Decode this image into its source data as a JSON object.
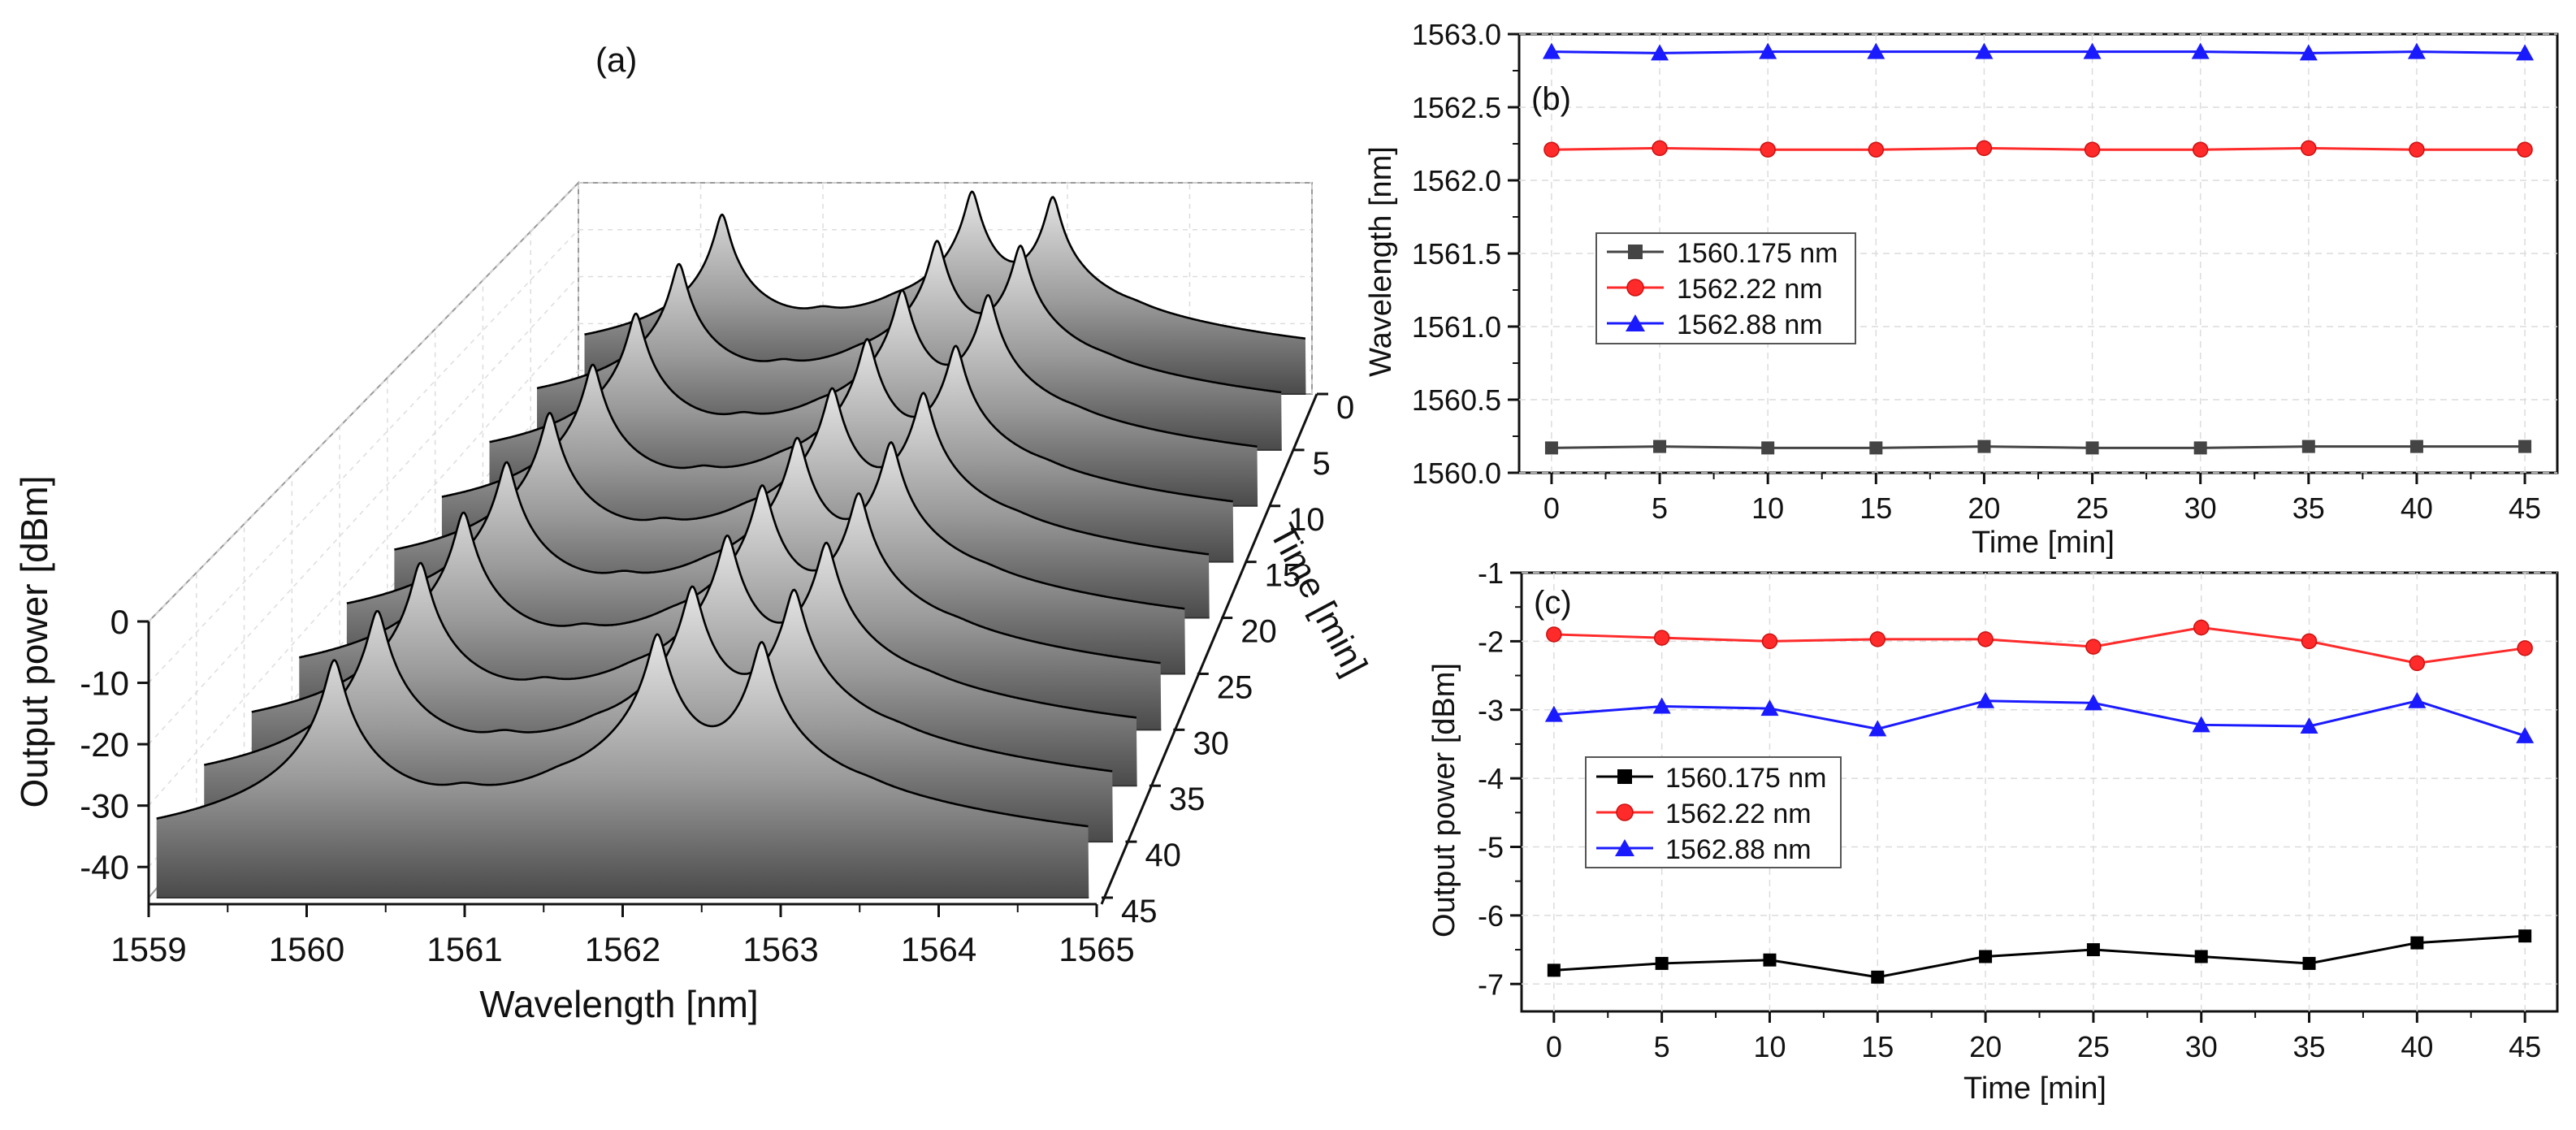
{
  "chart_data": [
    {
      "panel": "(a)",
      "type": "area",
      "style": "3d-waterfall",
      "title": "",
      "xlabel": "Wavelength [nm]",
      "ylabel": "Output power [dBm]",
      "zlabel": "Time [min]",
      "xlim": [
        1559,
        1565
      ],
      "ylim": [
        -45,
        0
      ],
      "x_ticks": [
        "1559",
        "1560",
        "1561",
        "1562",
        "1563",
        "1564",
        "1565"
      ],
      "y_ticks": [
        "0",
        "-10",
        "-20",
        "-30",
        "-40"
      ],
      "z_ticks": [
        "0",
        "5",
        "10",
        "15",
        "20",
        "25",
        "30",
        "35",
        "40",
        "45"
      ],
      "baseline_dbm": -45,
      "noise_floor_dbm": -43,
      "peaks": [
        {
          "wavelength": 1560.175,
          "power": [
            -6.8,
            -6.7,
            -6.65,
            -6.9,
            -6.6,
            -6.5,
            -6.6,
            -6.7,
            -6.4,
            -6.3
          ]
        },
        {
          "wavelength": 1562.22,
          "power": [
            -1.9,
            -1.95,
            -2.0,
            -1.97,
            -1.97,
            -2.08,
            -1.8,
            -2.0,
            -2.32,
            -2.1
          ]
        },
        {
          "wavelength": 1562.88,
          "power": [
            -3.07,
            -2.95,
            -2.98,
            -3.28,
            -2.87,
            -2.9,
            -3.22,
            -3.24,
            -2.87,
            -3.38
          ]
        }
      ],
      "side_modes": [
        {
          "wavelength": 1561.0,
          "power": -33
        },
        {
          "wavelength": 1561.6,
          "power": -34
        },
        {
          "wavelength": 1563.55,
          "power": -37
        }
      ]
    },
    {
      "panel": "(b)",
      "type": "line",
      "title": "",
      "xlabel": "Time [min]",
      "ylabel": "Wavelength [nm]",
      "xlim": [
        -1.5,
        46.5
      ],
      "ylim": [
        1560.0,
        1563.0
      ],
      "x_ticks": [
        "0",
        "5",
        "10",
        "15",
        "20",
        "25",
        "30",
        "35",
        "40",
        "45"
      ],
      "y_ticks": [
        "1560.0",
        "1560.5",
        "1561.0",
        "1561.5",
        "1562.0",
        "1562.5",
        "1563.0"
      ],
      "x": [
        0,
        5,
        10,
        15,
        20,
        25,
        30,
        35,
        40,
        45
      ],
      "series": [
        {
          "name": "1560.175 nm",
          "color": "#444444",
          "marker": "square",
          "values": [
            1560.17,
            1560.18,
            1560.17,
            1560.17,
            1560.18,
            1560.17,
            1560.17,
            1560.18,
            1560.18,
            1560.18
          ]
        },
        {
          "name": "1562.22 nm",
          "color": "#ff2a2a",
          "marker": "circle",
          "values": [
            1562.21,
            1562.22,
            1562.21,
            1562.21,
            1562.22,
            1562.21,
            1562.21,
            1562.22,
            1562.21,
            1562.21
          ]
        },
        {
          "name": "1562.88 nm",
          "color": "#1a1aff",
          "marker": "triangle",
          "values": [
            1562.88,
            1562.87,
            1562.88,
            1562.88,
            1562.88,
            1562.88,
            1562.88,
            1562.87,
            1562.88,
            1562.87
          ]
        }
      ],
      "legend_position": "center-left"
    },
    {
      "panel": "(c)",
      "type": "line",
      "title": "",
      "xlabel": "Time [min]",
      "ylabel": "Output power [dBm]",
      "xlim": [
        -1.5,
        46.5
      ],
      "ylim": [
        -7.4,
        -1.0
      ],
      "x_ticks": [
        "0",
        "5",
        "10",
        "15",
        "20",
        "25",
        "30",
        "35",
        "40",
        "45"
      ],
      "y_ticks": [
        "-1",
        "-2",
        "-3",
        "-4",
        "-5",
        "-6",
        "-7"
      ],
      "x": [
        0,
        5,
        10,
        15,
        20,
        25,
        30,
        35,
        40,
        45
      ],
      "series": [
        {
          "name": "1560.175 nm",
          "color": "#000000",
          "marker": "square",
          "values": [
            -6.8,
            -6.7,
            -6.65,
            -6.9,
            -6.6,
            -6.5,
            -6.6,
            -6.7,
            -6.4,
            -6.3
          ]
        },
        {
          "name": "1562.22 nm",
          "color": "#ff2a2a",
          "marker": "circle",
          "values": [
            -1.9,
            -1.95,
            -2.0,
            -1.97,
            -1.97,
            -2.08,
            -1.8,
            -2.0,
            -2.32,
            -2.1
          ]
        },
        {
          "name": "1562.88 nm",
          "color": "#1a1aff",
          "marker": "triangle",
          "values": [
            -3.07,
            -2.95,
            -2.98,
            -3.28,
            -2.87,
            -2.9,
            -3.22,
            -3.24,
            -2.87,
            -3.38
          ]
        }
      ],
      "legend_position": "center-left"
    }
  ]
}
